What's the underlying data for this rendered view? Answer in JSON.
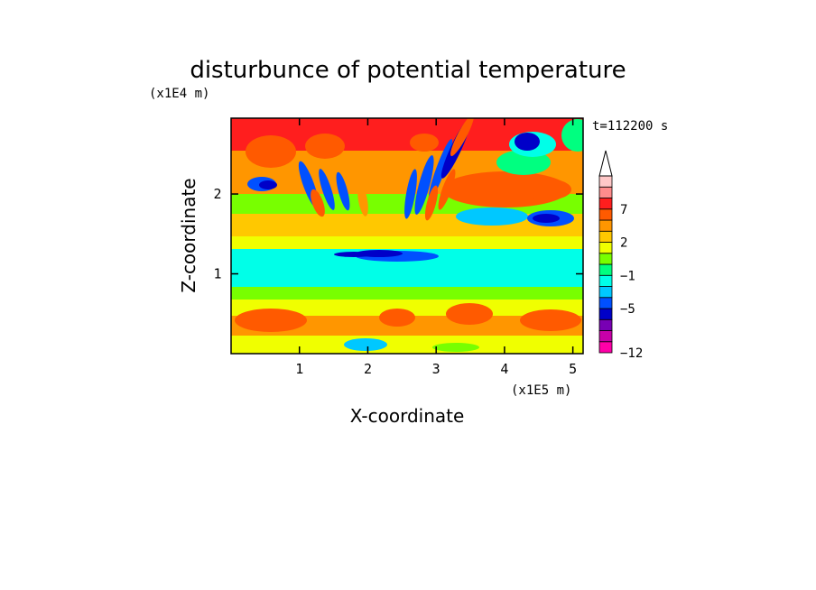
{
  "chart_data": {
    "type": "heatmap",
    "title": "disturbunce of potential temperature",
    "xlabel": "X-coordinate",
    "ylabel": "Z-coordinate",
    "x_unit": "(x1E5 m)",
    "y_unit": "(x1E4 m)",
    "time_label": "t=112200 s",
    "xlim": [
      0,
      5.15
    ],
    "ylim": [
      0,
      2.95
    ],
    "x_ticks": [
      "1",
      "2",
      "3",
      "4",
      "5"
    ],
    "y_ticks": [
      "1",
      "2"
    ],
    "x_tick_values": [
      1,
      2,
      3,
      4,
      5
    ],
    "y_tick_values": [
      1,
      2
    ],
    "colorbar": {
      "levels": [
        -12,
        -11,
        -9,
        -7,
        -5,
        -3,
        -2,
        -1,
        0,
        1,
        2,
        3,
        5,
        7,
        9,
        11
      ],
      "tick_labels": [
        "7",
        "2",
        "-1",
        "-5",
        "-12"
      ],
      "tick_values": [
        7,
        2,
        -1,
        -5,
        -12
      ],
      "colors": [
        "#ff00a8",
        "#c800a8",
        "#7800b4",
        "#0000c8",
        "#0050ff",
        "#00c8ff",
        "#00ffe8",
        "#00ff80",
        "#78ff00",
        "#f0ff00",
        "#ffc800",
        "#ff9600",
        "#ff5a00",
        "#ff1e1e",
        "#ff8c8c",
        "#ffc8c8"
      ],
      "extend_top": true
    }
  }
}
